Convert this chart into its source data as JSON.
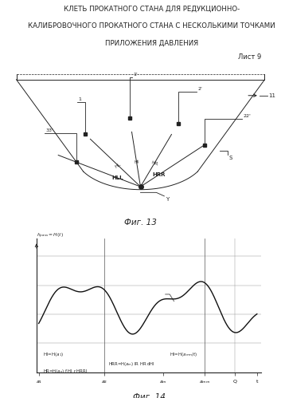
{
  "title_line1": "КЛЕТЬ ПРОКАТНОГО СТАНА ДЛЯ РЕДУКЦИОННО-",
  "title_line2": "КАЛИБРОВОЧНОГО ПРОКАТНОГО СТАНА С НЕСКОЛЬКИМИ ТОЧКАМИ",
  "title_line3": "ПРИЛОЖЕНИЯ ДАВЛЕНИЯ",
  "sheet_label": "Лист 9",
  "fig13_label": "Фиг. 13",
  "fig14_label": "Фиг. 14",
  "bg_color": "#ffffff",
  "line_color": "#222222",
  "text_color": "#222222"
}
